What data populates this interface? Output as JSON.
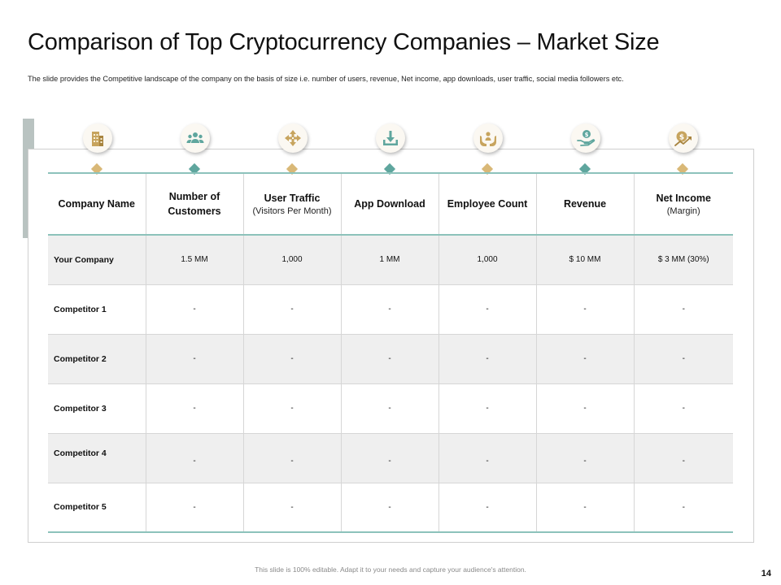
{
  "slide": {
    "title": "Comparison of Top Cryptocurrency Companies – Market Size",
    "subtitle": "The slide provides the Competitive landscape of the company on the basis of size i.e. number of users, revenue, Net income, app downloads, user traffic, social media followers etc.",
    "footer": "This slide is 100% editable. Adapt it to your needs and capture your audience's attention.",
    "page_number": "14"
  },
  "colors": {
    "accent_teal": "#5fa69e",
    "accent_gold": "#d9b877",
    "rule_teal": "#8cc2bb",
    "row_shade": "#efefef",
    "side_bar": "#b9c3c1"
  },
  "columns": [
    {
      "label": "Company Name",
      "sub": "",
      "icon": "building-icon",
      "diamond": "gold"
    },
    {
      "label": "Number of Customers",
      "sub": "",
      "icon": "people-group-icon",
      "diamond": "teal"
    },
    {
      "label": "User Traffic",
      "sub": "(Visitors Per Month)",
      "icon": "arrows-direction-icon",
      "diamond": "gold"
    },
    {
      "label": "App Download",
      "sub": "",
      "icon": "download-icon",
      "diamond": "teal"
    },
    {
      "label": "Employee Count",
      "sub": "",
      "icon": "hands-person-icon",
      "diamond": "gold"
    },
    {
      "label": "Revenue",
      "sub": "",
      "icon": "money-hand-icon",
      "diamond": "teal"
    },
    {
      "label": "Net Income",
      "sub": "(Margin)",
      "icon": "dollar-growth-icon",
      "diamond": "gold"
    }
  ],
  "rows": [
    {
      "name": "Your Company",
      "values": [
        "1.5 MM",
        "1,000",
        "1 MM",
        "1,000",
        "$ 10 MM",
        "$ 3 MM (30%)"
      ]
    },
    {
      "name": "Competitor 1",
      "values": [
        "-",
        "-",
        "-",
        "-",
        "-",
        "-"
      ]
    },
    {
      "name": "Competitor 2",
      "values": [
        "-",
        "-",
        "-",
        "-",
        "-",
        "-"
      ]
    },
    {
      "name": "Competitor 3",
      "values": [
        "-",
        "-",
        "-",
        "-",
        "-",
        "-"
      ]
    },
    {
      "name": "Competitor 4",
      "values": [
        "-",
        "-",
        "-",
        "-",
        "-",
        "-"
      ]
    },
    {
      "name": "Competitor 5",
      "values": [
        "-",
        "-",
        "-",
        "-",
        "-",
        "-"
      ]
    }
  ]
}
